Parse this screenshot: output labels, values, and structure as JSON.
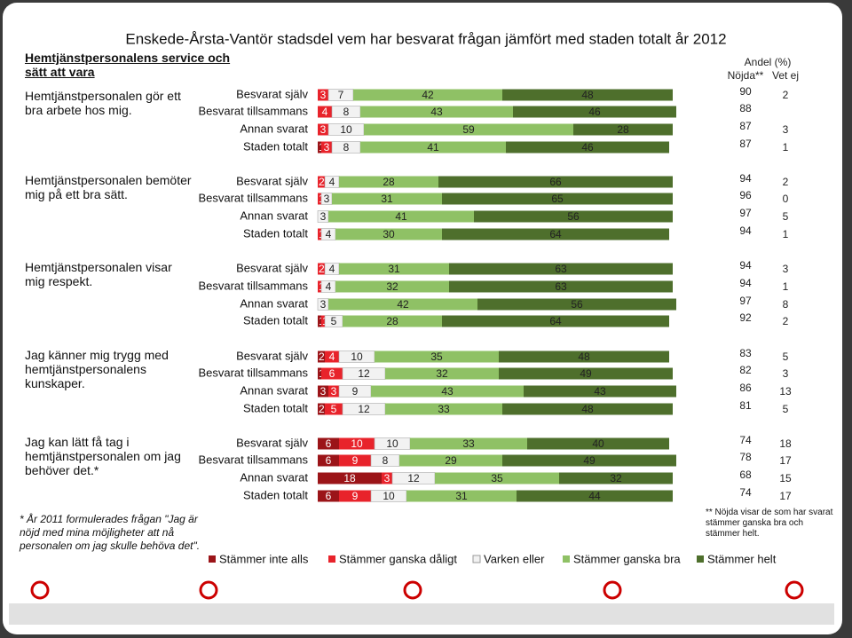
{
  "chart_data": {
    "type": "stacked_bar",
    "title": "Enskede-Årsta-Vantör stadsdel vem har besvarat frågan jämfört med staden totalt år 2012",
    "section_title": "Hemtjänstpersonalens service och sätt att vara",
    "header": "Andel (%)",
    "satisfied_header": "Nöjda**",
    "dont_know_header": "Vet ej",
    "xlim": [
      0,
      100
    ],
    "series": [
      {
        "name": "Stämmer inte alls",
        "color": "#9b1418"
      },
      {
        "name": "Stämmer ganska dåligt",
        "color": "#e8232b"
      },
      {
        "name": "Varken eller",
        "color": "#f2f2f2"
      },
      {
        "name": "Stämmer ganska bra",
        "color": "#8fc165"
      },
      {
        "name": "Stämmer helt",
        "color": "#4e6f2c"
      }
    ],
    "groups": [
      {
        "question": "Hemtjänstpersonalen gör ett bra arbete hos mig.",
        "rows": [
          {
            "label": "Besvarat själv",
            "values": [
              0,
              3,
              7,
              42,
              48
            ],
            "satisfied": 90,
            "dont_know": 2
          },
          {
            "label": "Besvarat tillsammans",
            "values": [
              null,
              4,
              8,
              43,
              46
            ],
            "satisfied": 88,
            "dont_know": null
          },
          {
            "label": "Annan svarat",
            "values": [
              null,
              3,
              10,
              59,
              28
            ],
            "satisfied": 87,
            "dont_know": 3
          },
          {
            "label": "Staden totalt",
            "values": [
              1,
              3,
              8,
              41,
              46
            ],
            "satisfied": 87,
            "dont_know": 1
          }
        ]
      },
      {
        "question": "Hemtjänstpersonalen bemöter mig på ett bra sätt.",
        "rows": [
          {
            "label": "Besvarat själv",
            "values": [
              0,
              2,
              4,
              28,
              66
            ],
            "satisfied": 94,
            "dont_know": 2
          },
          {
            "label": "Besvarat tillsammans",
            "values": [
              null,
              1,
              3,
              31,
              65
            ],
            "satisfied": 96,
            "dont_know": 0
          },
          {
            "label": "Annan svarat",
            "values": [
              null,
              null,
              3,
              41,
              56
            ],
            "satisfied": 97,
            "dont_know": 5
          },
          {
            "label": "Staden totalt",
            "values": [
              null,
              1,
              4,
              30,
              64
            ],
            "satisfied": 94,
            "dont_know": 1
          }
        ]
      },
      {
        "question": "Hemtjänstpersonalen visar mig respekt.",
        "rows": [
          {
            "label": "Besvarat själv",
            "values": [
              0,
              2,
              4,
              31,
              63
            ],
            "satisfied": 94,
            "dont_know": 3
          },
          {
            "label": "Besvarat tillsammans",
            "values": [
              null,
              1,
              4,
              32,
              63
            ],
            "satisfied": 94,
            "dont_know": 1
          },
          {
            "label": "Annan svarat",
            "values": [
              null,
              null,
              3,
              42,
              56
            ],
            "satisfied": 97,
            "dont_know": 8
          },
          {
            "label": "Staden totalt",
            "values": [
              1,
              1,
              5,
              28,
              64
            ],
            "satisfied": 92,
            "dont_know": 2
          }
        ]
      },
      {
        "question": "Jag känner mig trygg med hemtjänstpersonalens kunskaper.",
        "rows": [
          {
            "label": "Besvarat själv",
            "values": [
              2,
              4,
              10,
              35,
              48
            ],
            "satisfied": 83,
            "dont_know": 5
          },
          {
            "label": "Besvarat tillsammans",
            "values": [
              1,
              6,
              12,
              32,
              49
            ],
            "satisfied": 82,
            "dont_know": 3
          },
          {
            "label": "Annan svarat",
            "values": [
              3,
              3,
              9,
              43,
              43
            ],
            "satisfied": 86,
            "dont_know": 13
          },
          {
            "label": "Staden totalt",
            "values": [
              2,
              5,
              12,
              33,
              48
            ],
            "satisfied": 81,
            "dont_know": 5
          }
        ]
      },
      {
        "question": "Jag kan lätt få tag i hemtjänstpersonalen om jag behöver det.*",
        "rows": [
          {
            "label": "Besvarat själv",
            "values": [
              6,
              10,
              10,
              33,
              40
            ],
            "satisfied": 74,
            "dont_know": 18
          },
          {
            "label": "Besvarat tillsammans",
            "values": [
              6,
              9,
              8,
              29,
              49
            ],
            "satisfied": 78,
            "dont_know": 17
          },
          {
            "label": "Annan svarat",
            "values": [
              18,
              3,
              12,
              35,
              32
            ],
            "satisfied": 68,
            "dont_know": 15
          },
          {
            "label": "Staden totalt",
            "values": [
              6,
              9,
              10,
              31,
              44
            ],
            "satisfied": 74,
            "dont_know": 17
          }
        ]
      }
    ],
    "footnote_1": "* År 2011 formulerades frågan \"Jag är nöjd med mina möjligheter att nå personalen om jag skulle behöva det\".",
    "footnote_2": "** Nöjda visar de som har svarat stämmer ganska bra och stämmer helt."
  }
}
